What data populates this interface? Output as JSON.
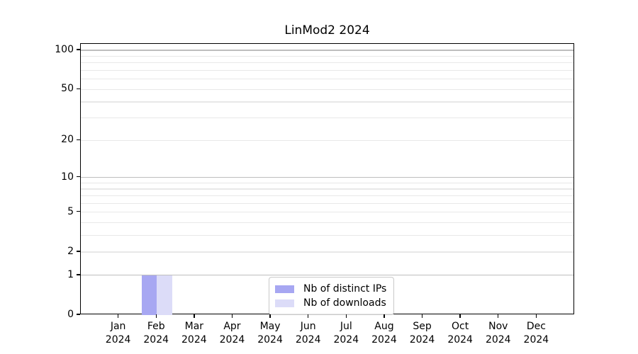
{
  "chart_data": {
    "type": "bar",
    "title": "LinMod2 2024",
    "categories": [
      "Jan 2024",
      "Feb 2024",
      "Mar 2024",
      "Apr 2024",
      "May 2024",
      "Jun 2024",
      "Jul 2024",
      "Aug 2024",
      "Sep 2024",
      "Oct 2024",
      "Nov 2024",
      "Dec 2024"
    ],
    "series": [
      {
        "name": "Nb of distinct IPs",
        "color": "#a7a7f2",
        "values": [
          0,
          1,
          0,
          0,
          0,
          0,
          0,
          0,
          0,
          0,
          0,
          0
        ]
      },
      {
        "name": "Nb of downloads",
        "color": "#dcdcf8",
        "values": [
          0,
          1,
          0,
          0,
          0,
          0,
          0,
          0,
          0,
          0,
          0,
          0
        ]
      }
    ],
    "xlabel": "",
    "ylabel": "",
    "y_axis": {
      "scale": "log10(1+value)",
      "ticks": [
        0,
        1,
        2,
        5,
        10,
        20,
        50,
        100
      ],
      "minor_gridlines": [
        3,
        4,
        6,
        7,
        8,
        9,
        30,
        40,
        60,
        70,
        80,
        90
      ],
      "ylim": [
        0,
        112
      ]
    },
    "grid": {
      "on": true,
      "decade_values": [
        1,
        10,
        100
      ],
      "decade_color": "#6e6e6e",
      "decade_alpha": 0.45,
      "minor_color": "#969696",
      "minor_alpha": 0.22
    },
    "legend_position": "inside lower-center-right",
    "axes_color": "#000000",
    "background_color": "#ffffff"
  }
}
